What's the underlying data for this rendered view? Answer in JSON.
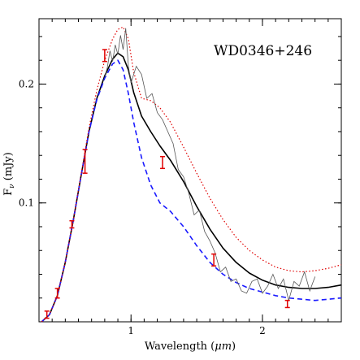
{
  "chart_data": {
    "type": "line",
    "title": "",
    "annotation": "WD0346+246",
    "xlabel_text": "Wavelength (",
    "xlabel_unit": "μm",
    "xlabel_close": ")",
    "ylabel_main": "F",
    "ylabel_sub": "ν",
    "ylabel_unit": " (mJy)",
    "xlim": [
      0.3,
      2.6
    ],
    "ylim": [
      0.0,
      0.255
    ],
    "x_ticks": [
      {
        "value": 1,
        "label": "1"
      },
      {
        "value": 2,
        "label": "2"
      }
    ],
    "y_ticks": [
      {
        "value": 0.1,
        "label": "0.1"
      },
      {
        "value": 0.2,
        "label": "0.2"
      }
    ],
    "minor_x_step": 0.1,
    "minor_y_step": 0.02,
    "grid": false,
    "legend": "none",
    "series": [
      {
        "style": "solid",
        "color": "#000000",
        "x": [
          0.32,
          0.38,
          0.44,
          0.5,
          0.56,
          0.62,
          0.68,
          0.74,
          0.8,
          0.86,
          0.9,
          0.94,
          0.98,
          1.02,
          1.08,
          1.15,
          1.22,
          1.3,
          1.4,
          1.5,
          1.6,
          1.7,
          1.8,
          1.9,
          2.0,
          2.1,
          2.2,
          2.3,
          2.4,
          2.5,
          2.6
        ],
        "y": [
          0.0,
          0.006,
          0.022,
          0.05,
          0.085,
          0.123,
          0.16,
          0.188,
          0.207,
          0.221,
          0.226,
          0.223,
          0.212,
          0.193,
          0.173,
          0.16,
          0.148,
          0.136,
          0.118,
          0.097,
          0.078,
          0.062,
          0.05,
          0.041,
          0.035,
          0.031,
          0.029,
          0.028,
          0.028,
          0.029,
          0.031
        ]
      },
      {
        "style": "dashed",
        "color": "#1a1aff",
        "x": [
          0.32,
          0.38,
          0.44,
          0.5,
          0.56,
          0.62,
          0.68,
          0.74,
          0.8,
          0.86,
          0.9,
          0.94,
          0.98,
          1.02,
          1.08,
          1.15,
          1.22,
          1.3,
          1.4,
          1.5,
          1.6,
          1.7,
          1.8,
          1.9,
          2.0,
          2.1,
          2.2,
          2.3,
          2.4,
          2.5,
          2.6
        ],
        "y": [
          0.0,
          0.006,
          0.022,
          0.05,
          0.085,
          0.123,
          0.16,
          0.187,
          0.205,
          0.217,
          0.22,
          0.212,
          0.192,
          0.168,
          0.138,
          0.115,
          0.1,
          0.093,
          0.08,
          0.064,
          0.05,
          0.04,
          0.033,
          0.028,
          0.025,
          0.022,
          0.02,
          0.019,
          0.018,
          0.019,
          0.02
        ]
      },
      {
        "style": "dotted",
        "color": "#e00000",
        "x": [
          0.32,
          0.38,
          0.44,
          0.5,
          0.56,
          0.62,
          0.68,
          0.74,
          0.8,
          0.86,
          0.9,
          0.94,
          0.98,
          1.02,
          1.08,
          1.15,
          1.22,
          1.3,
          1.4,
          1.5,
          1.6,
          1.7,
          1.8,
          1.9,
          2.0,
          2.1,
          2.2,
          2.3,
          2.4,
          2.5,
          2.6
        ],
        "y": [
          0.0,
          0.006,
          0.022,
          0.05,
          0.085,
          0.124,
          0.163,
          0.195,
          0.22,
          0.238,
          0.246,
          0.248,
          0.238,
          0.21,
          0.188,
          0.186,
          0.18,
          0.168,
          0.147,
          0.125,
          0.104,
          0.086,
          0.071,
          0.06,
          0.052,
          0.046,
          0.043,
          0.042,
          0.043,
          0.045,
          0.048
        ]
      }
    ],
    "spectrum": {
      "color": "#555555",
      "x": [
        0.8,
        0.82,
        0.84,
        0.86,
        0.88,
        0.9,
        0.92,
        0.94,
        0.96,
        0.98,
        1.0,
        1.04,
        1.08,
        1.12,
        1.16,
        1.2,
        1.24,
        1.28,
        1.32,
        1.36,
        1.4,
        1.44,
        1.48,
        1.52,
        1.56,
        1.6,
        1.64,
        1.68,
        1.72,
        1.76,
        1.8,
        1.84,
        1.88,
        1.92,
        1.96,
        2.0,
        2.04,
        2.08,
        2.12,
        2.16,
        2.2,
        2.24,
        2.28,
        2.32,
        2.36,
        2.4
      ],
      "y": [
        0.206,
        0.214,
        0.228,
        0.219,
        0.233,
        0.225,
        0.241,
        0.229,
        0.247,
        0.215,
        0.201,
        0.215,
        0.208,
        0.188,
        0.192,
        0.176,
        0.17,
        0.16,
        0.15,
        0.128,
        0.122,
        0.108,
        0.09,
        0.094,
        0.076,
        0.068,
        0.058,
        0.042,
        0.046,
        0.034,
        0.036,
        0.026,
        0.024,
        0.034,
        0.036,
        0.024,
        0.03,
        0.04,
        0.028,
        0.036,
        0.018,
        0.034,
        0.03,
        0.042,
        0.026,
        0.038
      ]
    },
    "photometry": {
      "color": "#e00000",
      "x": [
        0.36,
        0.44,
        0.55,
        0.65,
        0.8,
        1.24,
        1.63,
        2.19
      ],
      "y": [
        0.006,
        0.024,
        0.082,
        0.135,
        0.224,
        0.134,
        0.052,
        0.015
      ],
      "err": [
        0.003,
        0.004,
        0.003,
        0.01,
        0.005,
        0.005,
        0.005,
        0.003
      ]
    }
  }
}
